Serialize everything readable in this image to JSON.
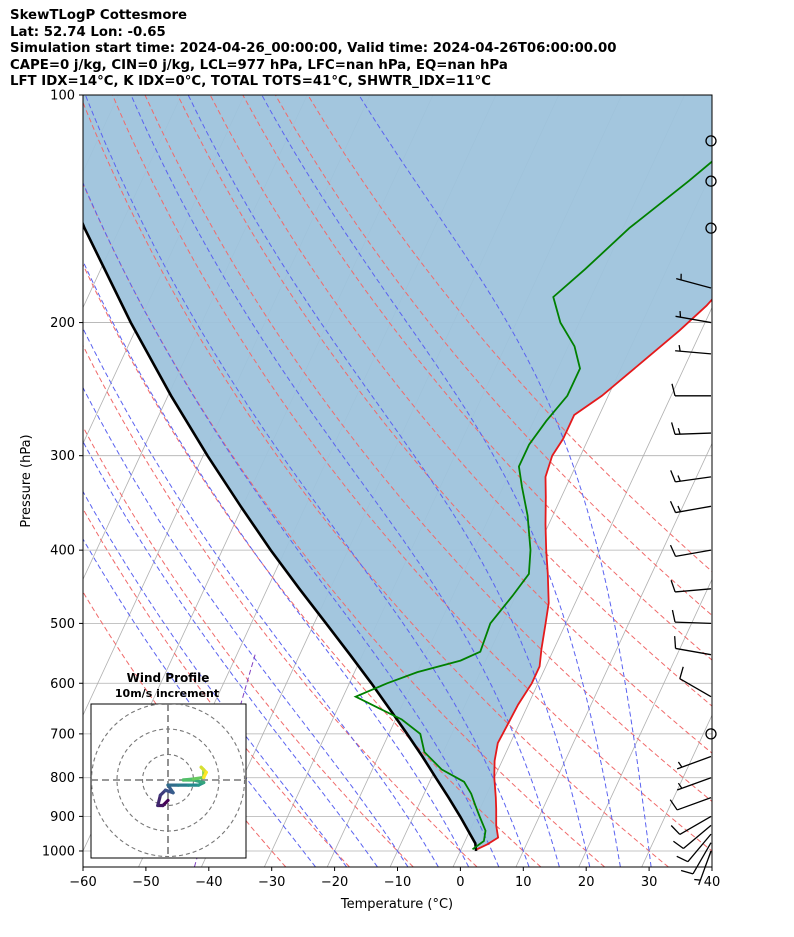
{
  "title_lines": [
    "SkewTLogP Cottesmore",
    "Lat: 52.74   Lon: -0.65",
    "Simulation start time: 2024-04-26_00:00:00, Valid time: 2024-04-26T06:00:00.00",
    "CAPE=0 j/kg, CIN=0 j/kg, LCL=977 hPa, LFC=nan hPa, EQ=nan hPa",
    "LFT IDX=14$^\\circ$C, K IDX=0$^\\circ$C, TOTAL TOTS=41$^\\circ$C, SHWTR_IDX=11$^\\circ$C"
  ],
  "chart_data": {
    "type": "skew-t",
    "xlabel": "Temperature ($^\\circ$C)",
    "ylabel": "Pressure (hPa)",
    "xlim": [
      -60,
      40
    ],
    "ylim": [
      1050,
      100
    ],
    "xticks": [
      -60,
      -50,
      -40,
      -30,
      -20,
      -10,
      0,
      10,
      20,
      30,
      40
    ],
    "xtick_labels": [
      "−60",
      "−50",
      "−40",
      "−30",
      "−20",
      "−10",
      "0",
      "10",
      "20",
      "30",
      "40"
    ],
    "yticks": [
      1000,
      900,
      800,
      700,
      600,
      500,
      400,
      300,
      200,
      100
    ],
    "grid": true,
    "colors": {
      "temperature": "#e41a1c",
      "dewpoint": "#008000",
      "parcel": "#000000",
      "shading": "#9ec3dc",
      "dry_adiabats": "#f06a6a",
      "moist_adiabats": "#5a62f0",
      "mixing_ratio": "#8040c0",
      "skewed_isotherms": "#b0b0b0"
    },
    "temperature_profile": [
      {
        "p": 995,
        "t": 2.5
      },
      {
        "p": 980,
        "t": 3.8
      },
      {
        "p": 960,
        "t": 5.0
      },
      {
        "p": 925,
        "t": 3.8
      },
      {
        "p": 880,
        "t": 2.6
      },
      {
        "p": 850,
        "t": 1.7
      },
      {
        "p": 800,
        "t": 0.0
      },
      {
        "p": 760,
        "t": -1.2
      },
      {
        "p": 720,
        "t": -2.0
      },
      {
        "p": 680,
        "t": -1.8
      },
      {
        "p": 640,
        "t": -1.6
      },
      {
        "p": 600,
        "t": -1.0
      },
      {
        "p": 570,
        "t": -1.0
      },
      {
        "p": 540,
        "t": -2.0
      },
      {
        "p": 500,
        "t": -3.2
      },
      {
        "p": 470,
        "t": -4.2
      },
      {
        "p": 430,
        "t": -6.5
      },
      {
        "p": 400,
        "t": -8.5
      },
      {
        "p": 370,
        "t": -10.5
      },
      {
        "p": 340,
        "t": -12.5
      },
      {
        "p": 320,
        "t": -14.0
      },
      {
        "p": 300,
        "t": -14.5
      },
      {
        "p": 285,
        "t": -14.0
      },
      {
        "p": 265,
        "t": -14.0
      },
      {
        "p": 250,
        "t": -11.0
      },
      {
        "p": 225,
        "t": -7.0
      },
      {
        "p": 205,
        "t": -3.5
      },
      {
        "p": 190,
        "t": -1.0
      },
      {
        "p": 170,
        "t": 1.5
      },
      {
        "p": 150,
        "t": 4.5
      },
      {
        "p": 130,
        "t": 9.0
      },
      {
        "p": 115,
        "t": 13.0
      },
      {
        "p": 100,
        "t": 18.0
      }
    ],
    "dewpoint_profile": [
      {
        "p": 995,
        "t": 1.8
      },
      {
        "p": 970,
        "t": 3.0
      },
      {
        "p": 940,
        "t": 2.5
      },
      {
        "p": 900,
        "t": 0.5
      },
      {
        "p": 870,
        "t": -1.0
      },
      {
        "p": 840,
        "t": -2.5
      },
      {
        "p": 810,
        "t": -4.5
      },
      {
        "p": 780,
        "t": -9.0
      },
      {
        "p": 740,
        "t": -13.0
      },
      {
        "p": 700,
        "t": -15.0
      },
      {
        "p": 670,
        "t": -19.0
      },
      {
        "p": 625,
        "t": -28.0
      },
      {
        "p": 600,
        "t": -24.0
      },
      {
        "p": 580,
        "t": -20.0
      },
      {
        "p": 560,
        "t": -14.0
      },
      {
        "p": 545,
        "t": -11.5
      },
      {
        "p": 500,
        "t": -12.0
      },
      {
        "p": 460,
        "t": -10.5
      },
      {
        "p": 430,
        "t": -9.5
      },
      {
        "p": 400,
        "t": -11.0
      },
      {
        "p": 360,
        "t": -14.0
      },
      {
        "p": 330,
        "t": -17.0
      },
      {
        "p": 310,
        "t": -19.0
      },
      {
        "p": 290,
        "t": -19.0
      },
      {
        "p": 270,
        "t": -18.0
      },
      {
        "p": 250,
        "t": -16.5
      },
      {
        "p": 230,
        "t": -16.5
      },
      {
        "p": 215,
        "t": -19.0
      },
      {
        "p": 200,
        "t": -23.0
      },
      {
        "p": 185,
        "t": -26.0
      },
      {
        "p": 170,
        "t": -23.0
      },
      {
        "p": 150,
        "t": -19.0
      },
      {
        "p": 130,
        "t": -13.0
      },
      {
        "p": 100,
        "t": -3.0
      }
    ],
    "parcel_profile": [
      {
        "p": 1000,
        "t": 2.5
      },
      {
        "p": 977,
        "t": 1.8
      },
      {
        "p": 950,
        "t": 0.3
      },
      {
        "p": 900,
        "t": -2.6
      },
      {
        "p": 850,
        "t": -5.8
      },
      {
        "p": 800,
        "t": -9.3
      },
      {
        "p": 750,
        "t": -13.0
      },
      {
        "p": 700,
        "t": -17.1
      },
      {
        "p": 650,
        "t": -21.6
      },
      {
        "p": 600,
        "t": -26.5
      },
      {
        "p": 550,
        "t": -32.0
      },
      {
        "p": 500,
        "t": -38.1
      },
      {
        "p": 450,
        "t": -44.9
      },
      {
        "p": 400,
        "t": -52.3
      },
      {
        "p": 350,
        "t": -60.3
      },
      {
        "p": 300,
        "t": -69.3
      },
      {
        "p": 250,
        "t": -79.5
      },
      {
        "p": 200,
        "t": -91.3
      },
      {
        "p": 150,
        "t": -105.6
      },
      {
        "p": 100,
        "t": -123.9
      }
    ],
    "dry_adiabat_thetas": [
      -30,
      -20,
      -10,
      0,
      10,
      20,
      30,
      40,
      50,
      60,
      70,
      80,
      90,
      100
    ],
    "moist_adiabat_t0": [
      -25,
      -20,
      -15,
      -10,
      -5,
      0,
      5,
      10,
      15,
      20,
      25,
      30
    ],
    "mixing_ratios_gkg": [
      0.1
    ],
    "skewed_isotherms": [
      -150,
      -140,
      -130,
      -120,
      -110,
      -100,
      -90,
      -80,
      -70,
      -60,
      -50,
      -40,
      -30,
      -20,
      -10,
      0,
      10,
      20,
      30,
      40
    ],
    "wind_barbs": [
      {
        "p": 1000,
        "speed_kt": 5,
        "dir": 200
      },
      {
        "p": 975,
        "speed_kt": 10,
        "dir": 210
      },
      {
        "p": 950,
        "speed_kt": 10,
        "dir": 220
      },
      {
        "p": 925,
        "speed_kt": 10,
        "dir": 230
      },
      {
        "p": 900,
        "speed_kt": 10,
        "dir": 240
      },
      {
        "p": 850,
        "speed_kt": 10,
        "dir": 250
      },
      {
        "p": 800,
        "speed_kt": 5,
        "dir": 250
      },
      {
        "p": 750,
        "speed_kt": 5,
        "dir": 250
      },
      {
        "p": 700,
        "speed_kt": 0,
        "dir": 0
      },
      {
        "p": 625,
        "speed_kt": 10,
        "dir": 300
      },
      {
        "p": 550,
        "speed_kt": 10,
        "dir": 280
      },
      {
        "p": 500,
        "speed_kt": 10,
        "dir": 272
      },
      {
        "p": 450,
        "speed_kt": 10,
        "dir": 265
      },
      {
        "p": 400,
        "speed_kt": 10,
        "dir": 260
      },
      {
        "p": 350,
        "speed_kt": 15,
        "dir": 260
      },
      {
        "p": 320,
        "speed_kt": 15,
        "dir": 262
      },
      {
        "p": 280,
        "speed_kt": 15,
        "dir": 268
      },
      {
        "p": 250,
        "speed_kt": 10,
        "dir": 270
      },
      {
        "p": 220,
        "speed_kt": 5,
        "dir": 275
      },
      {
        "p": 200,
        "speed_kt": 5,
        "dir": 280
      },
      {
        "p": 180,
        "speed_kt": 5,
        "dir": 285
      },
      {
        "p": 150,
        "speed_kt": 0,
        "dir": 0
      },
      {
        "p": 130,
        "speed_kt": 0,
        "dir": 0
      },
      {
        "p": 115,
        "speed_kt": 0,
        "dir": 0
      }
    ],
    "inset": {
      "title": "Wind Profile",
      "subtitle": "10m/s increment",
      "rings": 3,
      "hodograph": [
        {
          "u": 0,
          "v": -4
        },
        {
          "u": -1,
          "v": -5
        },
        {
          "u": -2,
          "v": -5
        },
        {
          "u": -1.5,
          "v": -3
        },
        {
          "u": -0.5,
          "v": -2
        },
        {
          "u": 1,
          "v": -2.5
        },
        {
          "u": 0,
          "v": -1
        },
        {
          "u": 2,
          "v": -1
        },
        {
          "u": 4,
          "v": -1
        },
        {
          "u": 6,
          "v": -1
        },
        {
          "u": 7,
          "v": -0.5
        },
        {
          "u": 5,
          "v": 0
        },
        {
          "u": 3,
          "v": 0
        },
        {
          "u": 5,
          "v": 0.2
        },
        {
          "u": 7,
          "v": 0.5
        },
        {
          "u": 7,
          "v": 2
        },
        {
          "u": 6.5,
          "v": 2.5
        },
        {
          "u": 7.5,
          "v": 1.5
        },
        {
          "u": 7,
          "v": 0.5
        }
      ]
    }
  }
}
